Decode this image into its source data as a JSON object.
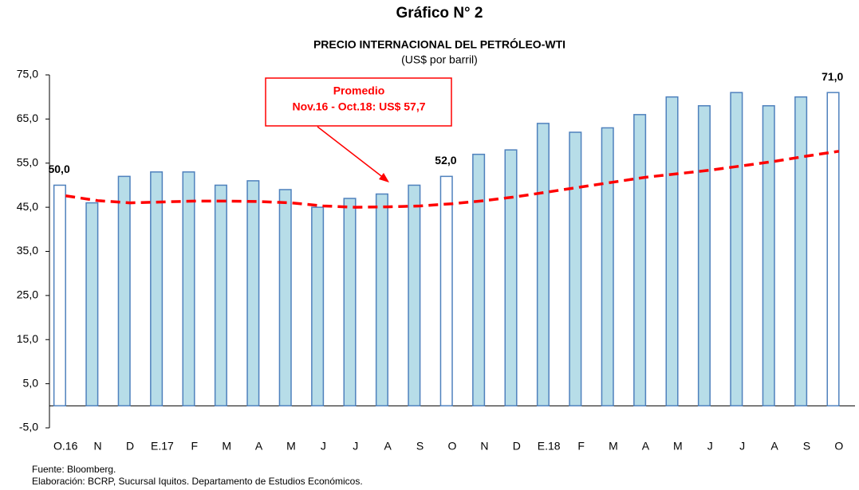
{
  "chart_data": {
    "type": "bar",
    "title": "Gráfico N° 2",
    "subtitle": "PRECIO INTERNACIONAL DEL PETRÓLEO-WTI",
    "unit_label": "(US$ por barril)",
    "annotation": [
      "Promedio",
      "Nov.16 - Oct.18: US$ 57,7"
    ],
    "source": "Fuente: Bloomberg.",
    "credit": "Elaboración: BCRP, Sucursal Iquitos. Departamento de Estudios Económicos.",
    "categories": [
      "O.16",
      "N",
      "D",
      "E.17",
      "F",
      "M",
      "A",
      "M",
      "J",
      "J",
      "A",
      "S",
      "O",
      "N",
      "D",
      "E.18",
      "F",
      "M",
      "A",
      "M",
      "J",
      "J",
      "A",
      "S",
      "O"
    ],
    "values": [
      50,
      46,
      52,
      53,
      53,
      50,
      51,
      49,
      45,
      47,
      48,
      50,
      52,
      57,
      58,
      64,
      62,
      63,
      66,
      70,
      68,
      71,
      68,
      70,
      71
    ],
    "value_labels": [
      "50,0",
      null,
      null,
      null,
      null,
      null,
      null,
      null,
      null,
      null,
      null,
      null,
      "52,0",
      null,
      null,
      null,
      null,
      null,
      null,
      null,
      null,
      null,
      null,
      null,
      "71,0"
    ],
    "colors": [
      "#ffffff",
      "#b7dde8",
      "#b7dde8",
      "#b7dde8",
      "#b7dde8",
      "#b7dde8",
      "#b7dde8",
      "#b7dde8",
      "#b7dde8",
      "#b7dde8",
      "#b7dde8",
      "#b7dde8",
      "#ffffff",
      "#b7dde8",
      "#b7dde8",
      "#b7dde8",
      "#b7dde8",
      "#b7dde8",
      "#b7dde8",
      "#b7dde8",
      "#b7dde8",
      "#b7dde8",
      "#b7dde8",
      "#b7dde8",
      "#ffffff"
    ],
    "border_color": "#4f81bd",
    "trend": {
      "color": "#ff0000",
      "values": [
        47.6,
        46.5,
        46,
        46.2,
        46.4,
        46.4,
        46.3,
        46,
        45.3,
        45,
        45.1,
        45.3,
        45.8,
        46.5,
        47.4,
        48.5,
        49.6,
        50.7,
        51.8,
        52.6,
        53.4,
        54.4,
        55.4,
        56.6,
        57.7
      ]
    },
    "ylim": [
      -5,
      75
    ],
    "yticks": [
      {
        "value": -5,
        "label": "-5,0"
      },
      {
        "value": 5,
        "label": "5,0"
      },
      {
        "value": 15,
        "label": "15,0"
      },
      {
        "value": 25,
        "label": "25,0"
      },
      {
        "value": 35,
        "label": "35,0"
      },
      {
        "value": 45,
        "label": "45,0"
      },
      {
        "value": 55,
        "label": "55,0"
      },
      {
        "value": 65,
        "label": "65,0"
      },
      {
        "value": 75,
        "label": "75,0"
      }
    ]
  }
}
